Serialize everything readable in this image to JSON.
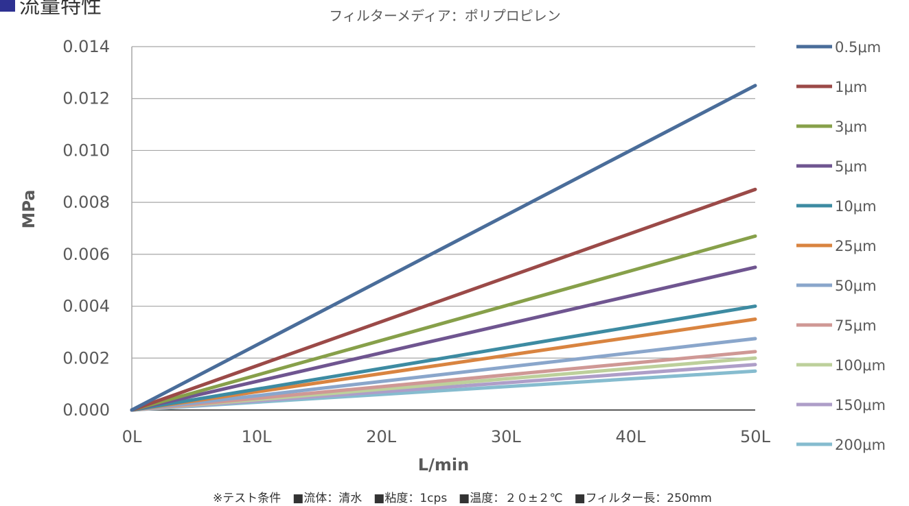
{
  "header": {
    "title": "流量特性"
  },
  "footnote": "※テスト条件　■流体：清水　■粘度：1cps　■温度：２０±２℃　■フィルター長：250mm",
  "chart_data": {
    "type": "line",
    "title": "",
    "subtitle": "フィルターメディア：ポリプロピレン",
    "xlabel": "L/min",
    "ylabel": "MPa",
    "x": [
      0,
      50
    ],
    "x_tick_labels": [
      "0L",
      "10L",
      "20L",
      "30L",
      "40L",
      "50L"
    ],
    "x_ticks": [
      0,
      10,
      20,
      30,
      40,
      50
    ],
    "xlim": [
      0,
      50
    ],
    "y_ticks": [
      0,
      0.002,
      0.004,
      0.006,
      0.008,
      0.01,
      0.012,
      0.014
    ],
    "y_tick_labels": [
      "0.000",
      "0.002",
      "0.004",
      "0.006",
      "0.008",
      "0.010",
      "0.012",
      "0.014"
    ],
    "ylim": [
      0,
      0.014
    ],
    "grid": "horizontal",
    "legend_position": "right",
    "series": [
      {
        "name": "0.5μm",
        "color": "#4a6d9a",
        "values": [
          0,
          0.0125
        ]
      },
      {
        "name": "1μm",
        "color": "#9b4a48",
        "values": [
          0,
          0.0085
        ]
      },
      {
        "name": "3μm",
        "color": "#87a04a",
        "values": [
          0,
          0.0067
        ]
      },
      {
        "name": "5μm",
        "color": "#6f5590",
        "values": [
          0,
          0.0055
        ]
      },
      {
        "name": "10μm",
        "color": "#3d8ba2",
        "values": [
          0,
          0.004
        ]
      },
      {
        "name": "25μm",
        "color": "#d98440",
        "values": [
          0,
          0.0035
        ]
      },
      {
        "name": "50μm",
        "color": "#8aa6cb",
        "values": [
          0,
          0.00275
        ]
      },
      {
        "name": "75μm",
        "color": "#cf9895",
        "values": [
          0,
          0.00225
        ]
      },
      {
        "name": "100μm",
        "color": "#bdd09b",
        "values": [
          0,
          0.002
        ]
      },
      {
        "name": "150μm",
        "color": "#ae9ec8",
        "values": [
          0,
          0.00175
        ]
      },
      {
        "name": "200μm",
        "color": "#86bccf",
        "values": [
          0,
          0.0015
        ]
      }
    ]
  }
}
